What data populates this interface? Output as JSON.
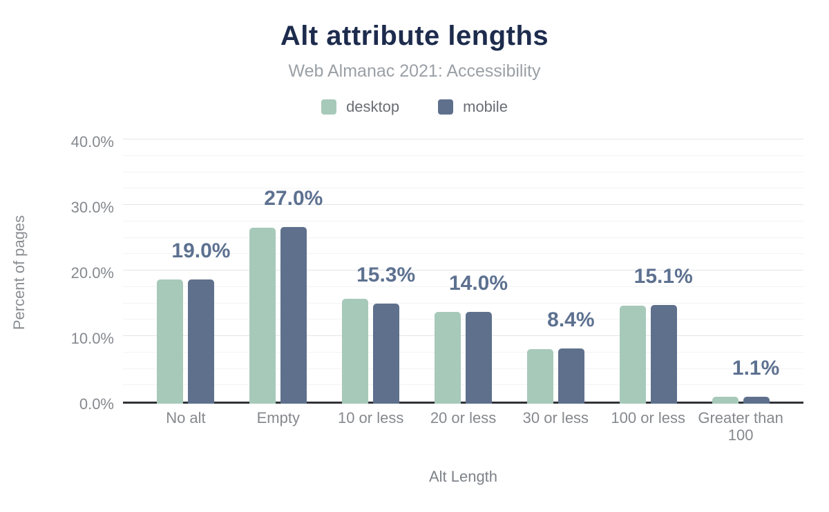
{
  "chart_data": {
    "type": "bar",
    "title": "Alt attribute lengths",
    "subtitle": "Web Almanac 2021: Accessibility",
    "xlabel": "Alt Length",
    "ylabel": "Percent of pages",
    "categories": [
      "No alt",
      "Empty",
      "10 or less",
      "20 or less",
      "30 or less",
      "100 or less",
      "Greater than 100"
    ],
    "series": [
      {
        "name": "desktop",
        "color": "#a7c9b9",
        "values": [
          19.0,
          26.8,
          16.0,
          14.0,
          8.3,
          14.9,
          1.1
        ]
      },
      {
        "name": "mobile",
        "color": "#5e708c",
        "values": [
          19.0,
          27.0,
          15.3,
          14.0,
          8.4,
          15.1,
          1.1
        ]
      }
    ],
    "value_labels": [
      "19.0%",
      "27.0%",
      "15.3%",
      "14.0%",
      "8.4%",
      "15.1%",
      "1.1%"
    ],
    "value_labels_series": "mobile",
    "ylim": [
      0,
      40
    ],
    "yticks": [
      {
        "value": 0,
        "label": "0.0%"
      },
      {
        "value": 10,
        "label": "10.0%"
      },
      {
        "value": 20,
        "label": "20.0%"
      },
      {
        "value": 30,
        "label": "30.0%"
      },
      {
        "value": 40,
        "label": "40.0%"
      }
    ],
    "grid": {
      "minor_step": 2.5,
      "major_step": 10,
      "orientation": "horizontal"
    },
    "legend_position": "top"
  },
  "colors": {
    "title": "#1d2b4d",
    "subtitle": "#9aa0a6",
    "value_label": "#5d7190",
    "axis_text": "#85898e",
    "axis_line": "#2f3136",
    "grid_major": "#e2e4e6",
    "grid_minor": "#f2f3f4",
    "desktop": "#a7c9b9",
    "mobile": "#5e708c",
    "background": "#ffffff"
  }
}
